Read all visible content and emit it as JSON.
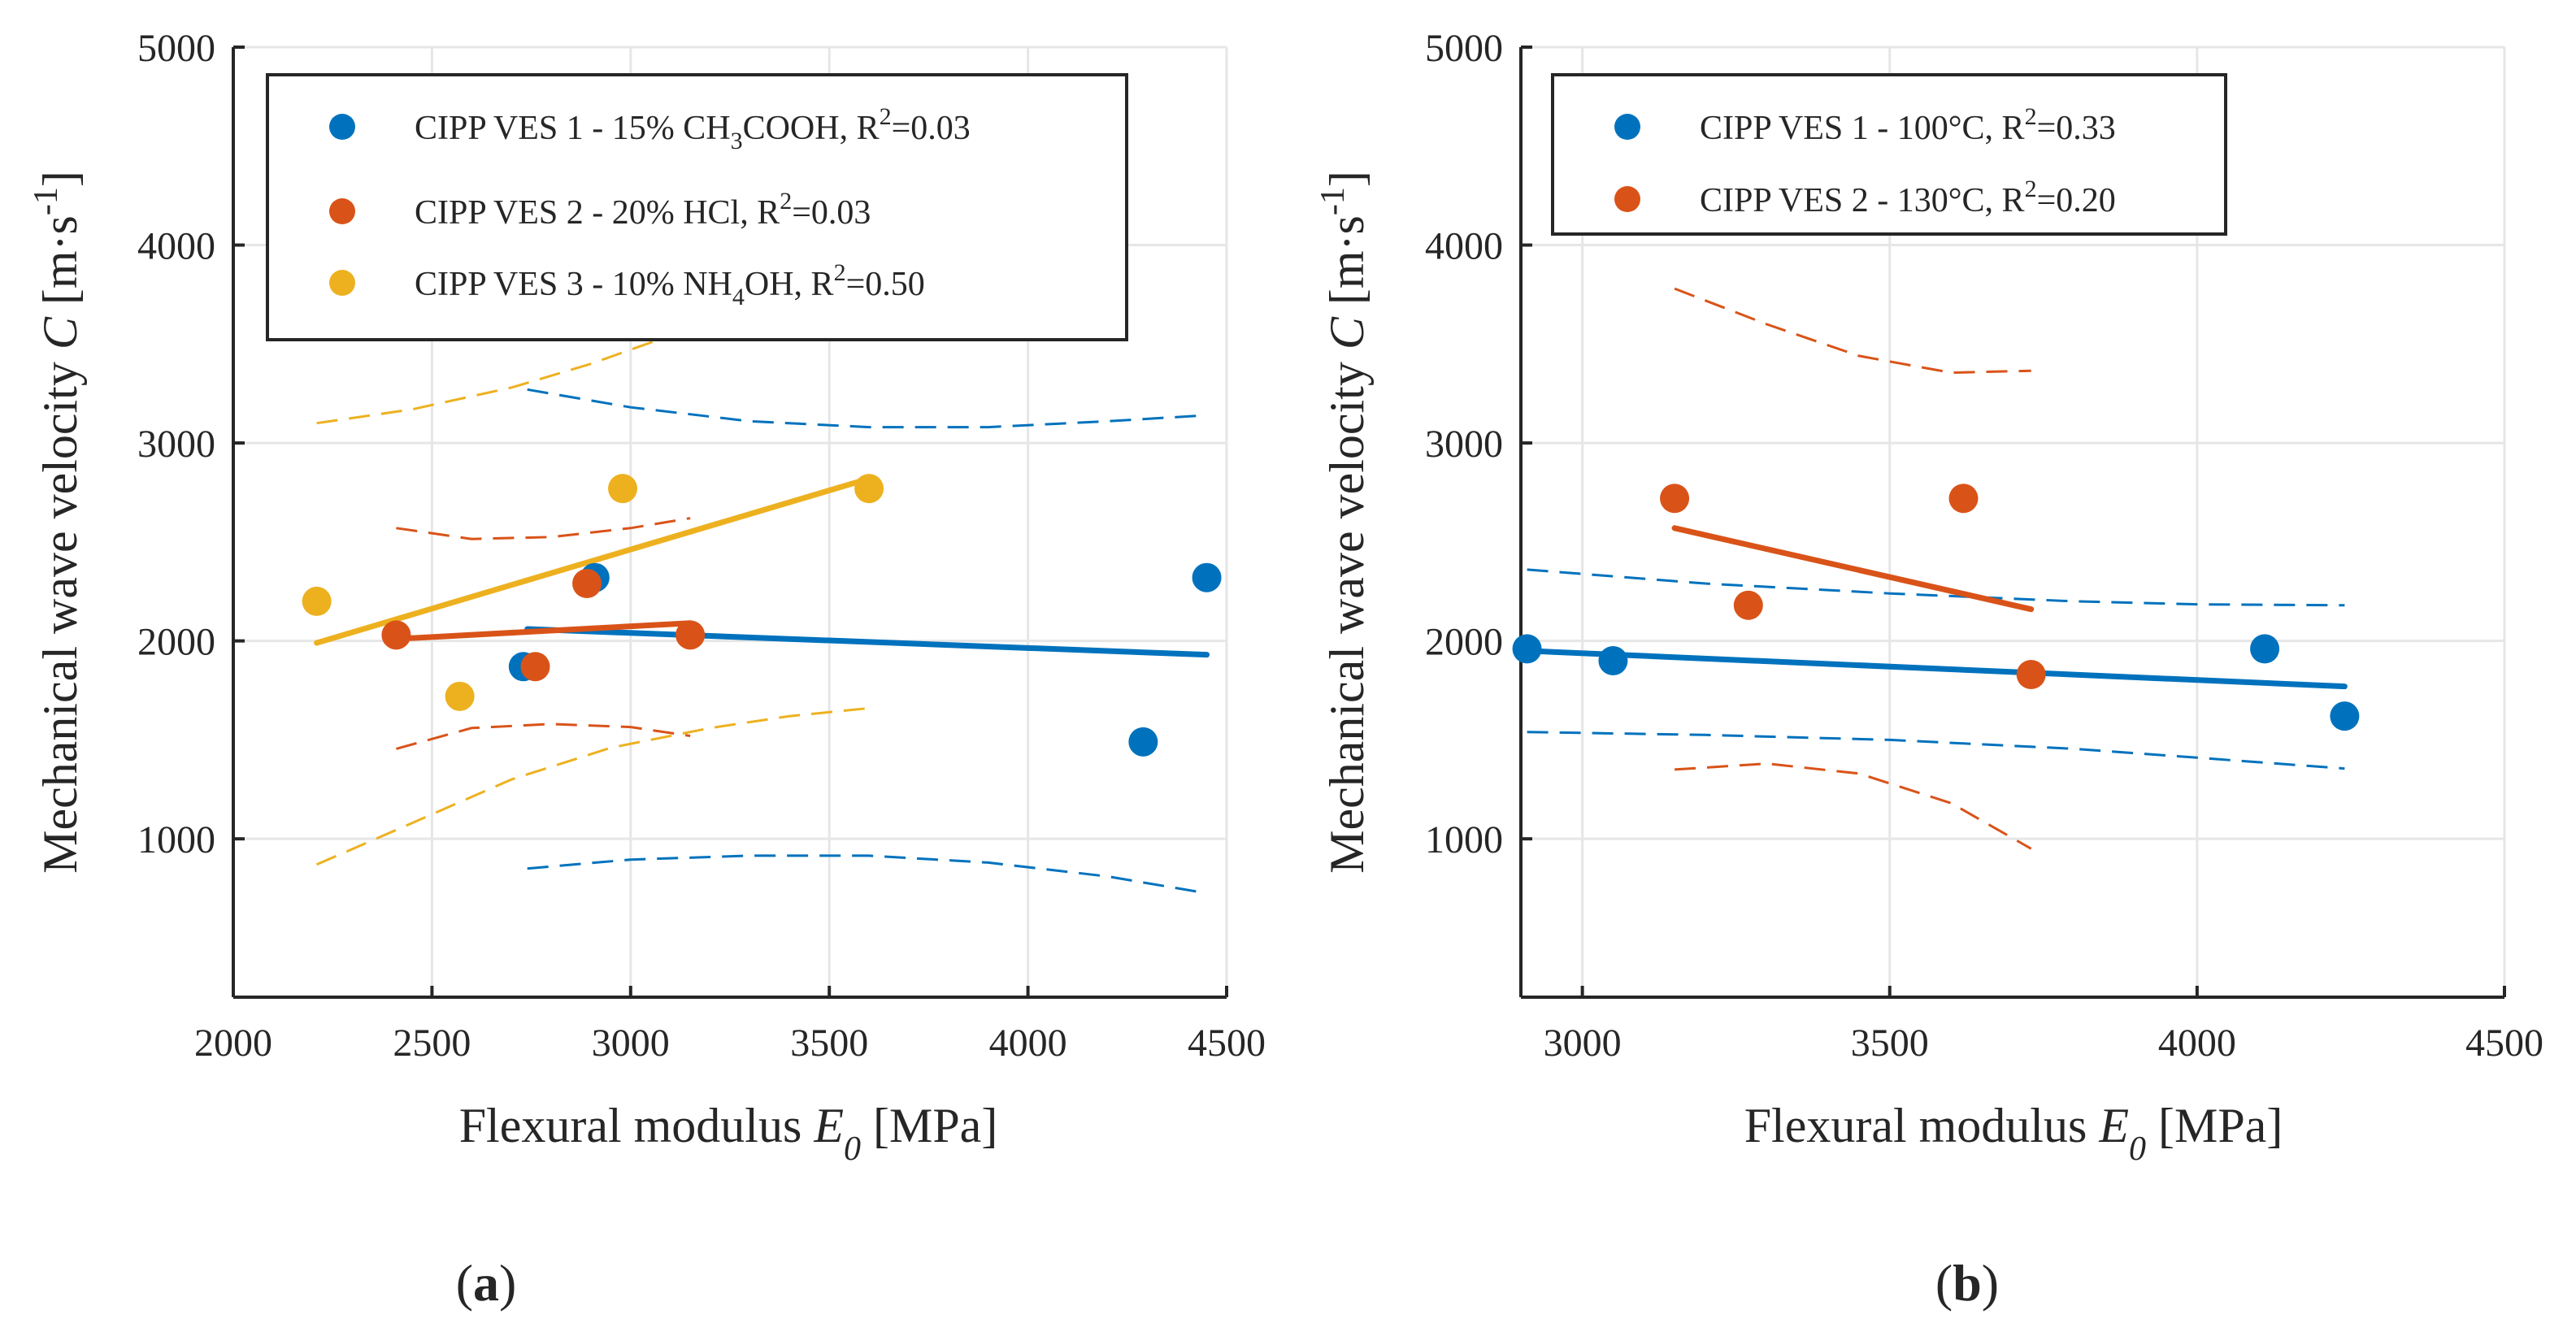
{
  "chart_data": [
    {
      "type": "scatter",
      "panel": "a",
      "xlabel": "Flexural modulus",
      "xsymbol": "E",
      "xsub": "0",
      "xunit": "[MPa]",
      "ylabel": "Mechanical wave velocity",
      "ysymbol": "C",
      "yunit_base": "[m·s",
      "yunit_sup": "-1",
      "yunit_close": "]",
      "xlim": [
        2000,
        4500
      ],
      "ylim": [
        200,
        5000
      ],
      "xticks": [
        "2000",
        "2500",
        "3000",
        "3500",
        "4000",
        "4500"
      ],
      "xtick_values": [
        2000,
        2500,
        3000,
        3500,
        4000,
        4500
      ],
      "yticks": [
        "1000",
        "2000",
        "3000",
        "4000",
        "5000"
      ],
      "ytick_values": [
        1000,
        2000,
        3000,
        4000,
        5000
      ],
      "grid": true,
      "legend_position": "top-left",
      "caption_open": "(",
      "caption": "a",
      "caption_close": ")",
      "series": [
        {
          "name": "CIPP VES 1",
          "legend_parts": [
            "CIPP VES 1 - 15% CH",
            "3",
            "COOH, R",
            "2",
            "=0.03"
          ],
          "color": "#0072BD",
          "x": [
            2730,
            2910,
            4290,
            4450
          ],
          "y": [
            1870,
            2320,
            1490,
            2320
          ],
          "fit": [
            [
              2740,
              2060
            ],
            [
              4450,
              1930
            ]
          ],
          "ci_upper": [
            [
              2740,
              3270
            ],
            [
              3000,
              3180
            ],
            [
              3300,
              3110
            ],
            [
              3600,
              3080
            ],
            [
              3900,
              3080
            ],
            [
              4200,
              3110
            ],
            [
              4450,
              3140
            ]
          ],
          "ci_lower": [
            [
              2740,
              850
            ],
            [
              3000,
              895
            ],
            [
              3300,
              915
            ],
            [
              3600,
              915
            ],
            [
              3900,
              880
            ],
            [
              4200,
              810
            ],
            [
              4450,
              725
            ]
          ]
        },
        {
          "name": "CIPP VES 2",
          "legend_parts": [
            "CIPP VES 2 - 20% HCl, R",
            "2",
            "=0.03"
          ],
          "color": "#D95319",
          "x": [
            2410,
            2760,
            2890,
            3150
          ],
          "y": [
            2030,
            1870,
            2290,
            2030
          ],
          "fit": [
            [
              2410,
              2010
            ],
            [
              3150,
              2090
            ]
          ],
          "ci_upper": [
            [
              2410,
              2570
            ],
            [
              2600,
              2515
            ],
            [
              2800,
              2525
            ],
            [
              3000,
              2570
            ],
            [
              3150,
              2620
            ]
          ],
          "ci_lower": [
            [
              2410,
              1455
            ],
            [
              2600,
              1560
            ],
            [
              2800,
              1580
            ],
            [
              3000,
              1565
            ],
            [
              3150,
              1520
            ]
          ]
        },
        {
          "name": "CIPP VES 3",
          "legend_parts": [
            "CIPP VES 3 - 10% NH",
            "4",
            "OH, R",
            "2",
            "=0.50"
          ],
          "color": "#EDB120",
          "x": [
            2210,
            2570,
            2980,
            3600
          ],
          "y": [
            2200,
            1720,
            2770,
            2770
          ],
          "fit": [
            [
              2210,
              1990
            ],
            [
              3600,
              2820
            ]
          ],
          "ci_upper": [
            [
              2210,
              3100
            ],
            [
              2450,
              3170
            ],
            [
              2700,
              3280
            ],
            [
              2900,
              3400
            ],
            [
              3110,
              3550
            ]
          ],
          "ci_lower": [
            [
              2210,
              870
            ],
            [
              2450,
              1080
            ],
            [
              2700,
              1300
            ],
            [
              2950,
              1460
            ],
            [
              3200,
              1560
            ],
            [
              3400,
              1620
            ],
            [
              3600,
              1660
            ]
          ]
        }
      ]
    },
    {
      "type": "scatter",
      "panel": "b",
      "xlabel": "Flexural modulus",
      "xsymbol": "E",
      "xsub": "0",
      "xunit": "[MPa]",
      "ylabel": "Mechanical wave velocity",
      "ysymbol": "C",
      "yunit_base": "[m·s",
      "yunit_sup": "-1",
      "yunit_close": "]",
      "xlim": [
        2900,
        4500
      ],
      "ylim": [
        200,
        5000
      ],
      "xticks": [
        "3000",
        "3500",
        "4000",
        "4500"
      ],
      "xtick_values": [
        3000,
        3500,
        4000,
        4500
      ],
      "yticks": [
        "1000",
        "2000",
        "3000",
        "4000",
        "5000"
      ],
      "ytick_values": [
        1000,
        2000,
        3000,
        4000,
        5000
      ],
      "grid": true,
      "legend_position": "top-left",
      "caption_open": "(",
      "caption": "b",
      "caption_close": ")",
      "series": [
        {
          "name": "CIPP VES 1",
          "legend_parts": [
            "CIPP VES 1 - 100°C, R",
            "2",
            "=0.33"
          ],
          "color": "#0072BD",
          "x": [
            2910,
            3050,
            4110,
            4240
          ],
          "y": [
            1960,
            1900,
            1960,
            1620
          ],
          "fit": [
            [
              2910,
              1950
            ],
            [
              4240,
              1770
            ]
          ],
          "ci_upper": [
            [
              2910,
              2360
            ],
            [
              3200,
              2290
            ],
            [
              3500,
              2240
            ],
            [
              3800,
              2200
            ],
            [
              4000,
              2185
            ],
            [
              4240,
              2180
            ]
          ],
          "ci_lower": [
            [
              2910,
              1540
            ],
            [
              3200,
              1525
            ],
            [
              3500,
              1500
            ],
            [
              3800,
              1455
            ],
            [
              4000,
              1410
            ],
            [
              4240,
              1355
            ]
          ]
        },
        {
          "name": "CIPP VES 2",
          "legend_parts": [
            "CIPP VES 2 - 130°C, R",
            "2",
            "=0.20"
          ],
          "color": "#D95319",
          "x": [
            3150,
            3270,
            3620,
            3730
          ],
          "y": [
            2720,
            2180,
            2720,
            1830
          ],
          "fit": [
            [
              3150,
              2570
            ],
            [
              3730,
              2160
            ]
          ],
          "ci_upper": [
            [
              3150,
              3780
            ],
            [
              3300,
              3600
            ],
            [
              3450,
              3440
            ],
            [
              3600,
              3355
            ],
            [
              3730,
              3365
            ]
          ],
          "ci_lower": [
            [
              3150,
              1350
            ],
            [
              3300,
              1380
            ],
            [
              3450,
              1330
            ],
            [
              3600,
              1180
            ],
            [
              3730,
              950
            ]
          ]
        }
      ]
    }
  ]
}
